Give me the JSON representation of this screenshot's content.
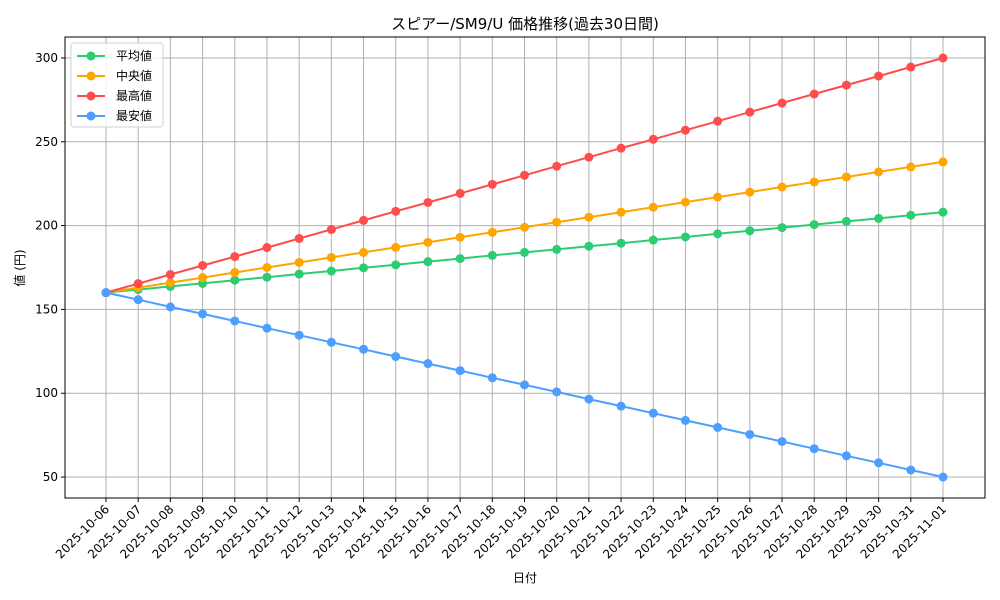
{
  "chart_data": {
    "type": "line",
    "title": "スピアー/SM9/U 価格推移(過去30日間)",
    "xlabel": "日付",
    "ylabel": "値 (円)",
    "ylim": [
      37.5,
      312.5
    ],
    "yticks": [
      50,
      100,
      150,
      200,
      250,
      300
    ],
    "grid": true,
    "legend_position": "upper left",
    "categories": [
      "2025-10-06",
      "2025-10-07",
      "2025-10-08",
      "2025-10-09",
      "2025-10-10",
      "2025-10-11",
      "2025-10-12",
      "2025-10-13",
      "2025-10-14",
      "2025-10-15",
      "2025-10-16",
      "2025-10-17",
      "2025-10-18",
      "2025-10-19",
      "2025-10-20",
      "2025-10-21",
      "2025-10-22",
      "2025-10-23",
      "2025-10-24",
      "2025-10-25",
      "2025-10-26",
      "2025-10-27",
      "2025-10-28",
      "2025-10-29",
      "2025-10-30",
      "2025-10-31",
      "2025-11-01"
    ],
    "series": [
      {
        "name": "平均値",
        "color": "#2ecc71",
        "values": [
          160.0,
          161.8,
          163.7,
          165.5,
          167.4,
          169.2,
          171.1,
          172.9,
          174.8,
          176.6,
          178.5,
          180.3,
          182.2,
          184.0,
          185.8,
          187.7,
          189.5,
          191.4,
          193.2,
          195.1,
          196.9,
          198.8,
          200.6,
          202.5,
          204.3,
          206.2,
          208.0
        ]
      },
      {
        "name": "中央値",
        "color": "#ffa500",
        "values": [
          160,
          163,
          166,
          169,
          172,
          175,
          178,
          181,
          184,
          187,
          190,
          193,
          196,
          199,
          202,
          205,
          208,
          211,
          214,
          217,
          220,
          223,
          226,
          229,
          232,
          235,
          238
        ]
      },
      {
        "name": "最高値",
        "color": "#ff4d4d",
        "values": [
          160.0,
          165.4,
          170.8,
          176.2,
          181.5,
          186.9,
          192.3,
          197.7,
          203.1,
          208.5,
          213.8,
          219.2,
          224.6,
          230.0,
          235.4,
          240.8,
          246.2,
          251.5,
          256.9,
          262.3,
          267.7,
          273.1,
          278.5,
          283.8,
          289.2,
          294.6,
          300.0
        ]
      },
      {
        "name": "最安値",
        "color": "#4d9fff",
        "values": [
          160.0,
          155.8,
          151.5,
          147.3,
          143.1,
          138.8,
          134.6,
          130.4,
          126.2,
          121.9,
          117.7,
          113.5,
          109.2,
          105.0,
          100.8,
          96.5,
          92.3,
          88.1,
          83.8,
          79.6,
          75.4,
          71.2,
          66.9,
          62.7,
          58.5,
          54.2,
          50.0
        ]
      }
    ]
  }
}
